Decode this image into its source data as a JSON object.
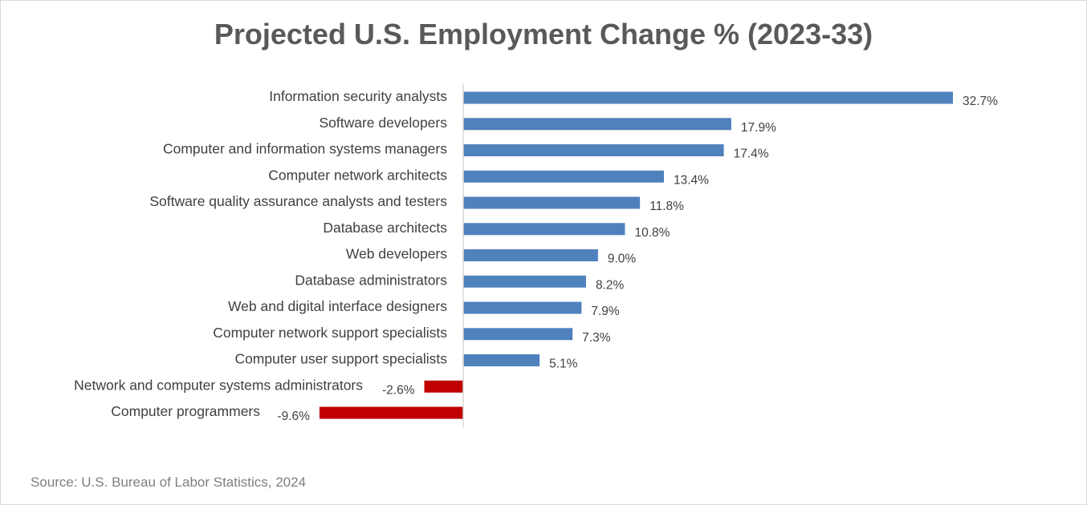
{
  "chart_data": {
    "type": "bar",
    "orientation": "horizontal",
    "title": "Projected U.S. Employment Change % (2023-33)",
    "source": "Source: U.S. Bureau of Labor Statistics, 2024",
    "categories": [
      "Information security analysts",
      "Software developers",
      "Computer and information systems managers",
      "Computer network architects",
      "Software quality assurance analysts and testers",
      "Database architects",
      "Web developers",
      "Database administrators",
      "Web and digital interface designers",
      "Computer network support specialists",
      "Computer user support specialists",
      "Network and computer systems administrators",
      "Computer programmers"
    ],
    "values": [
      32.7,
      17.9,
      17.4,
      13.4,
      11.8,
      10.8,
      9.0,
      8.2,
      7.9,
      7.3,
      5.1,
      -2.6,
      -9.6
    ],
    "data_labels": [
      "32.7%",
      "17.9%",
      "17.4%",
      "13.4%",
      "11.8%",
      "10.8%",
      "9.0%",
      "8.2%",
      "7.9%",
      "7.3%",
      "5.1%",
      "-2.6%",
      "-9.6%"
    ],
    "colors": {
      "positive": "#4F81BD",
      "negative": "#C00000"
    },
    "grid": false,
    "legend": "none"
  }
}
